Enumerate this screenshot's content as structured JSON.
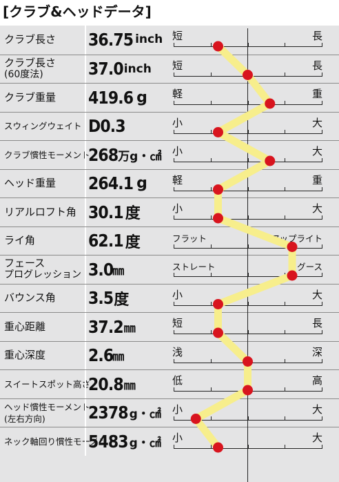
{
  "title": "[クラブ&ヘッドデータ]",
  "colors": {
    "line": "#f7ee8c",
    "dot": "#d8141e",
    "table_bg": "#e4e4e5",
    "axis": "#222222"
  },
  "rows": [
    {
      "label1": "クラブ長さ",
      "label2": "",
      "value": "36.75",
      "unit": "inch",
      "left": "短",
      "right": "長",
      "level": 0.3
    },
    {
      "label1": "クラブ長さ",
      "label2": "(60度法)",
      "value": "37.0",
      "unit": "inch",
      "left": "短",
      "right": "長",
      "level": 0.5
    },
    {
      "label1": "クラブ重量",
      "label2": "",
      "value": "419.6",
      "unit": "g",
      "left": "軽",
      "right": "重",
      "level": 0.65
    },
    {
      "label1": "スウィングウェイト",
      "label2": "",
      "value": "D0.3",
      "unit": "",
      "left": "小",
      "right": "大",
      "level": 0.3
    },
    {
      "label1": "クラブ慣性モーメント",
      "label2": "",
      "value": "268",
      "unit": "万g・㎠",
      "left": "小",
      "right": "大",
      "level": 0.65
    },
    {
      "label1": "ヘッド重量",
      "label2": "",
      "value": "264.1",
      "unit": "g",
      "left": "軽",
      "right": "重",
      "level": 0.3
    },
    {
      "label1": "リアルロフト角",
      "label2": "",
      "value": "30.1",
      "unit": "度",
      "left": "小",
      "right": "大",
      "level": 0.3
    },
    {
      "label1": "ライ角",
      "label2": "",
      "value": "62.1",
      "unit": "度",
      "left": "フラット",
      "right": "アップライト",
      "level": 0.8
    },
    {
      "label1": "フェース",
      "label2": "プログレッション",
      "value": "3.0",
      "unit": "㎜",
      "left": "ストレート",
      "right": "グース",
      "level": 0.8
    },
    {
      "label1": "バウンス角",
      "label2": "",
      "value": "3.5",
      "unit": "度",
      "left": "小",
      "right": "大",
      "level": 0.3
    },
    {
      "label1": "重心距離",
      "label2": "",
      "value": "37.2",
      "unit": "㎜",
      "left": "短",
      "right": "長",
      "level": 0.3
    },
    {
      "label1": "重心深度",
      "label2": "",
      "value": "2.6",
      "unit": "㎜",
      "left": "浅",
      "right": "深",
      "level": 0.5
    },
    {
      "label1": "スイートスポット高さ",
      "label2": "",
      "value": "20.8",
      "unit": "㎜",
      "left": "低",
      "right": "高",
      "level": 0.5
    },
    {
      "label1": "ヘッド慣性モーメント",
      "label2": "(左右方向)",
      "value": "2378",
      "unit": "g・㎠",
      "left": "小",
      "right": "大",
      "level": 0.15
    },
    {
      "label1": "ネック軸回り慣性モーメント",
      "label2": "",
      "value": "5483",
      "unit": "g・㎠",
      "left": "小",
      "right": "大",
      "level": 0.3
    }
  ]
}
